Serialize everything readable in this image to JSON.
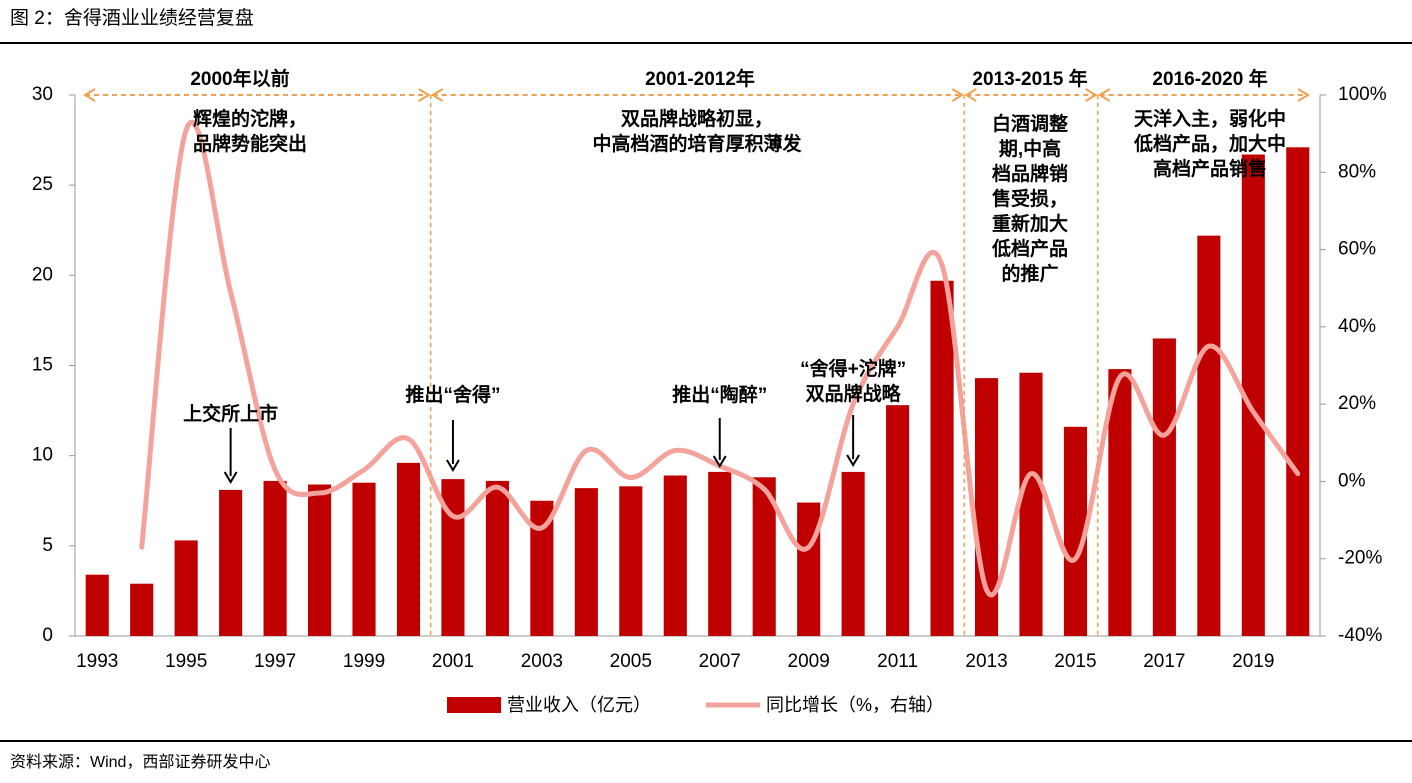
{
  "header": {
    "title": "图 2：舍得酒业业绩经营复盘"
  },
  "chart_data": {
    "type": "bar-line",
    "categories": [
      "1993",
      null,
      "1995",
      null,
      "1997",
      null,
      "1999",
      null,
      "2001",
      null,
      "2003",
      null,
      "2005",
      null,
      "2007",
      null,
      "2009",
      null,
      "2011",
      null,
      "2013",
      null,
      "2015",
      null,
      "2017",
      null,
      "2019",
      null
    ],
    "series": [
      {
        "name": "营业收入（亿元）",
        "type": "bar",
        "color": "#c00000",
        "values": [
          3.4,
          2.9,
          5.3,
          8.1,
          8.6,
          8.4,
          8.5,
          9.6,
          8.7,
          8.6,
          7.5,
          8.2,
          8.3,
          8.9,
          9.1,
          8.8,
          7.4,
          9.1,
          12.8,
          19.7,
          14.3,
          14.6,
          11.6,
          14.8,
          16.5,
          22.2,
          26.7,
          27.1
        ]
      },
      {
        "name": "同比增长（%，右轴）",
        "type": "line",
        "axis": "y2",
        "color": "#f4a39c",
        "values": [
          null,
          -17,
          91,
          49,
          3,
          -3,
          3,
          11,
          -9,
          -1.5,
          -12,
          8,
          1,
          8,
          4,
          -2,
          -17,
          20,
          40,
          56,
          -28,
          2,
          -20,
          27,
          12,
          35,
          18,
          2
        ]
      }
    ],
    "ylim": [
      0,
      30
    ],
    "yticks": [
      0,
      5,
      10,
      15,
      20,
      25,
      30
    ],
    "y2lim": [
      -40,
      100
    ],
    "y2ticks": [
      {
        "value": -40,
        "label": "-40%"
      },
      {
        "value": -20,
        "label": "-20%"
      },
      {
        "value": 0,
        "label": "0%"
      },
      {
        "value": 20,
        "label": "20%"
      },
      {
        "value": 40,
        "label": "40%"
      },
      {
        "value": 60,
        "label": "60%"
      },
      {
        "value": 80,
        "label": "80%"
      },
      {
        "value": 100,
        "label": "100%"
      }
    ],
    "periods": [
      {
        "label": "2000年以前",
        "note": [
          "辉煌的沱牌，",
          "品牌势能突出"
        ]
      },
      {
        "label": "2001-2012年",
        "note": [
          "双品牌战略初显，",
          "中高档酒的培育厚积薄发"
        ]
      },
      {
        "label": "2013-2015 年",
        "note": [
          "白酒调整",
          "期,中高",
          "档品牌销",
          "售受损，",
          "重新加大",
          "低档产品",
          "的推广"
        ]
      },
      {
        "label": "2016-2020 年",
        "note": [
          "天洋入主，弱化中",
          "低档产品，加大中",
          "高档产品销售"
        ]
      }
    ],
    "events": [
      {
        "text": [
          "上交所上市"
        ]
      },
      {
        "text": [
          "推出“舍得”"
        ]
      },
      {
        "text": [
          "推出“陶醉”"
        ]
      },
      {
        "text": [
          "“舍得+沱牌”",
          "双品牌战略"
        ]
      }
    ]
  },
  "footer": {
    "source": "资料来源：Wind，西部证券研发中心"
  }
}
